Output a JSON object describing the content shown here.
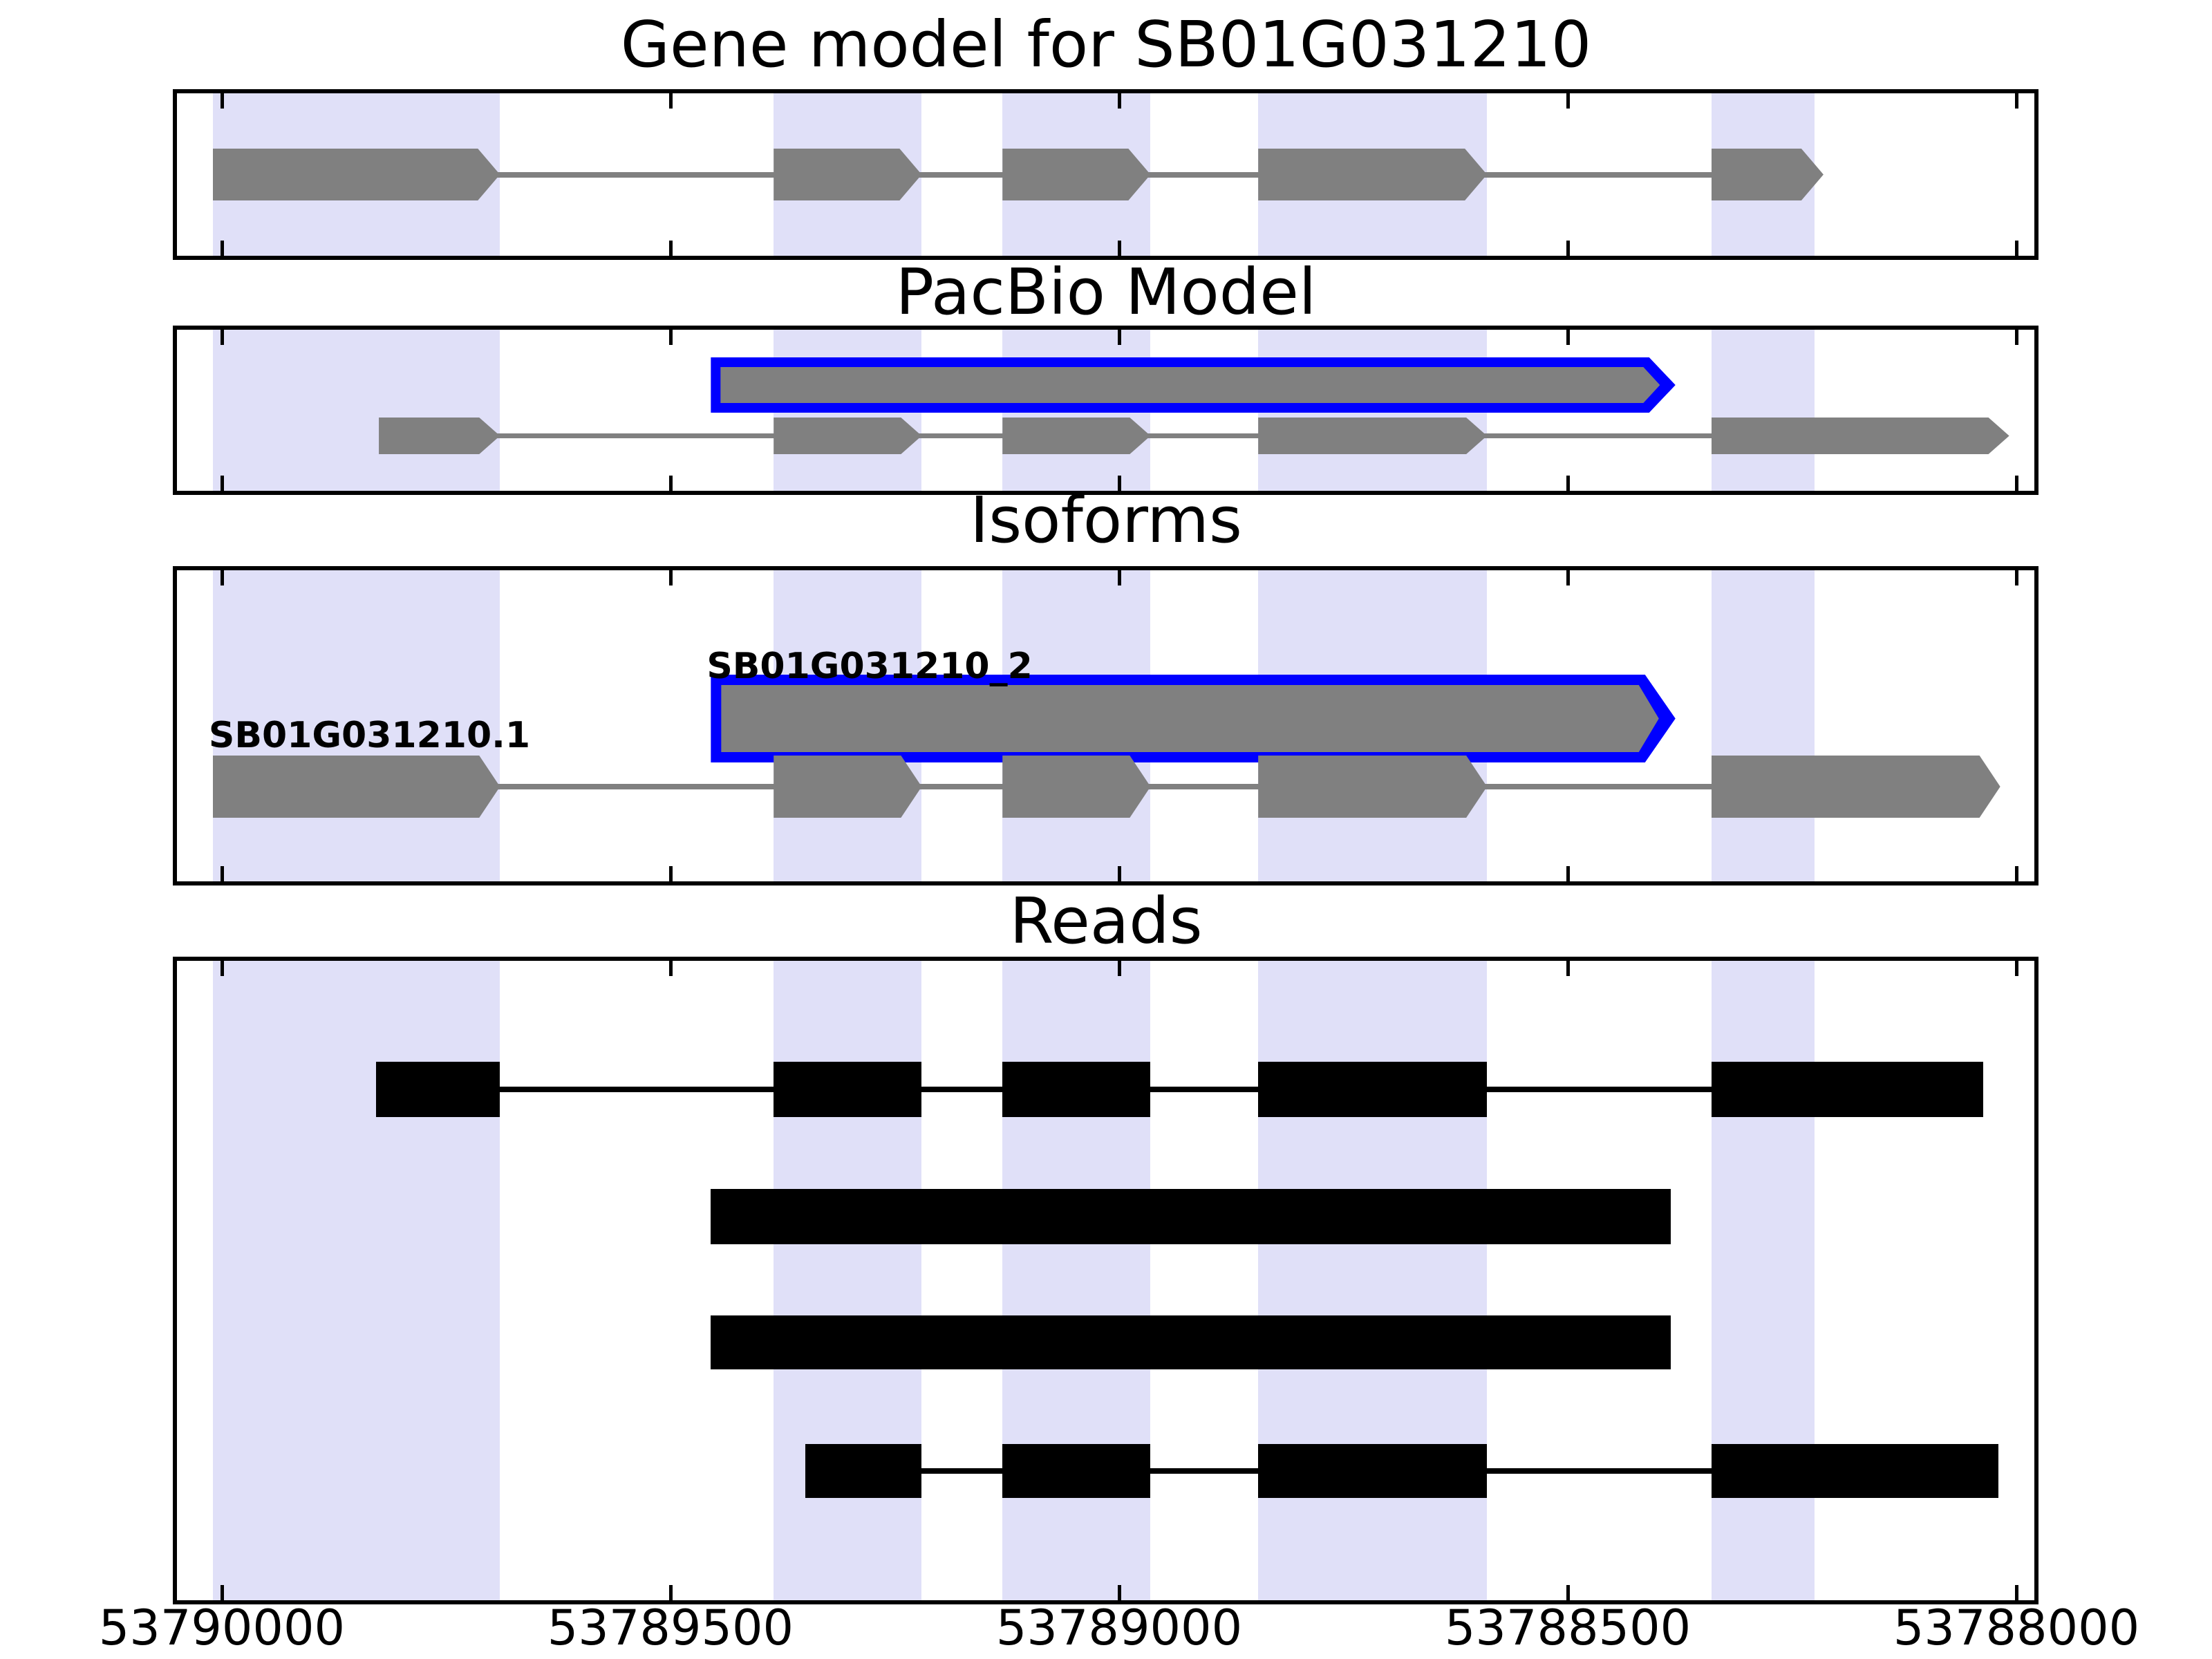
{
  "figure": {
    "background": "#ffffff",
    "colors": {
      "exon_gray": "#808080",
      "intron_line": "#808080",
      "read_black": "#000000",
      "highlight_outline_blue": "#0000ff",
      "exon_band_lavender": "#e0e0f8",
      "axis_black": "#000000"
    }
  },
  "chart_data": {
    "type": "genome_browser_tracks",
    "x_axis": {
      "range_bp": [
        53790050,
        53787980
      ],
      "direction": "decreasing",
      "ticks_bp": [
        53790000,
        53789500,
        53789000,
        53788500,
        53788000
      ],
      "tick_labels": [
        "53790000",
        "53789500",
        "53789000",
        "53788500",
        "53788000"
      ],
      "grid": false
    },
    "highlight_bands_bp": [
      [
        53790010,
        53789690
      ],
      [
        53789385,
        53789220
      ],
      [
        53789130,
        53788965
      ],
      [
        53788845,
        53788590
      ],
      [
        53788340,
        53788225
      ]
    ],
    "panels": [
      {
        "title": "Gene model for SB01G031210",
        "features": [
          {
            "name": "gene-model-transcript",
            "style": "gene",
            "color": "#808080",
            "arrow": true,
            "exons_bp": [
              [
                53790010,
                53789690
              ],
              [
                53789385,
                53789220
              ],
              [
                53789130,
                53788965
              ],
              [
                53788845,
                53788590
              ],
              [
                53788340,
                53788215
              ]
            ]
          }
        ]
      },
      {
        "title": "PacBio Model",
        "features": [
          {
            "name": "pacbio-read",
            "style": "highlight",
            "fill": "#808080",
            "outline": "#0000ff",
            "arrow": true,
            "exons_bp": [
              [
                53789455,
                53788380
              ]
            ]
          },
          {
            "name": "pacbio-reference-transcript",
            "style": "gene",
            "color": "#808080",
            "arrow": true,
            "exons_bp": [
              [
                53789825,
                53789690
              ],
              [
                53789385,
                53789220
              ],
              [
                53789130,
                53788965
              ],
              [
                53788845,
                53788590
              ],
              [
                53788340,
                53788008
              ]
            ]
          }
        ]
      },
      {
        "title": "Isoforms",
        "features": [
          {
            "name": "isoform-SB01G031210_2",
            "label": "SB01G031210_2",
            "style": "highlight",
            "fill": "#808080",
            "outline": "#0000ff",
            "arrow": true,
            "exons_bp": [
              [
                53789455,
                53788380
              ]
            ]
          },
          {
            "name": "isoform-SB01G031210.1",
            "label": "SB01G031210.1",
            "style": "gene",
            "color": "#808080",
            "arrow": true,
            "exons_bp": [
              [
                53790010,
                53789690
              ],
              [
                53789385,
                53789220
              ],
              [
                53789130,
                53788965
              ],
              [
                53788845,
                53788590
              ],
              [
                53788340,
                53788018
              ]
            ]
          }
        ]
      },
      {
        "title": "Reads",
        "features": [
          {
            "name": "read-1",
            "style": "read",
            "color": "#000000",
            "exons_bp": [
              [
                53789828,
                53789690
              ],
              [
                53789385,
                53789220
              ],
              [
                53789130,
                53788965
              ],
              [
                53788845,
                53788590
              ],
              [
                53788340,
                53788037
              ]
            ]
          },
          {
            "name": "read-2",
            "style": "read",
            "color": "#000000",
            "exons_bp": [
              [
                53789455,
                53788385
              ]
            ]
          },
          {
            "name": "read-3",
            "style": "read",
            "color": "#000000",
            "exons_bp": [
              [
                53789455,
                53788385
              ]
            ]
          },
          {
            "name": "read-4",
            "style": "read",
            "color": "#000000",
            "exons_bp": [
              [
                53789350,
                53789220
              ],
              [
                53789130,
                53788965
              ],
              [
                53788845,
                53788590
              ],
              [
                53788340,
                53788020
              ]
            ]
          }
        ]
      }
    ]
  }
}
